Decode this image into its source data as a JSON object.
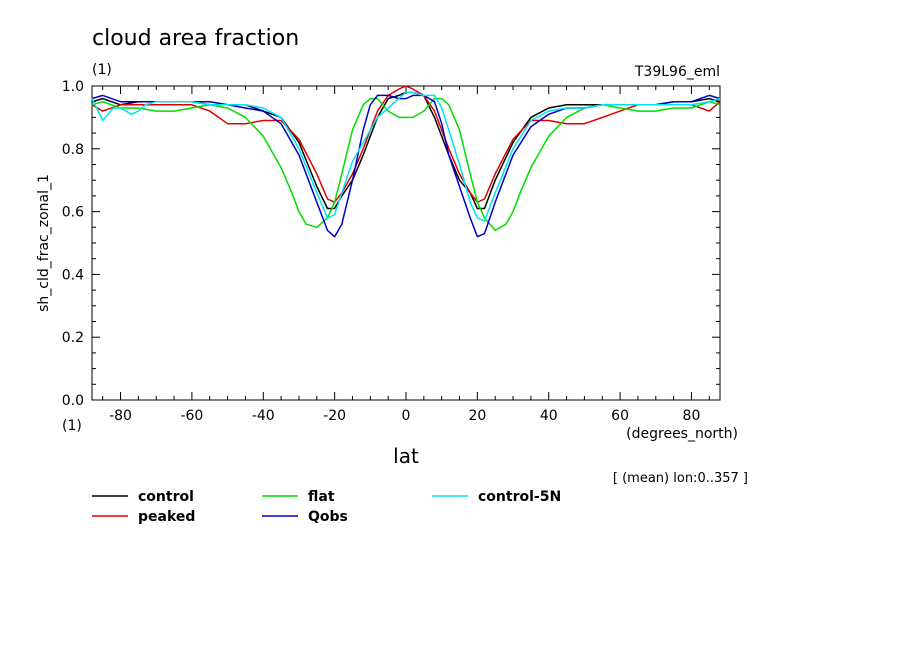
{
  "chart_data": {
    "type": "line",
    "title": "cloud area fraction",
    "y_units_label": "(1)",
    "run_label": "T39L96_eml",
    "ylabel": "sh_cld_frac_zonal_1",
    "xlabel": "lat",
    "x_units_label": "(degrees_north)",
    "x_axis_units_label": "(1)",
    "annotation": "[ (mean) lon:0..357 ]",
    "xlim": [
      -88,
      88
    ],
    "ylim": [
      0.0,
      1.0
    ],
    "x_ticks": [
      -80,
      -60,
      -40,
      -20,
      0,
      20,
      40,
      60,
      80
    ],
    "y_ticks": [
      0.0,
      0.2,
      0.4,
      0.6,
      0.8,
      1.0
    ],
    "x_tick_labels": [
      "-80",
      "-60",
      "-40",
      "-20",
      "0",
      "20",
      "40",
      "60",
      "80"
    ],
    "y_tick_labels": [
      "0.0",
      "0.2",
      "0.4",
      "0.6",
      "0.8",
      "1.0"
    ],
    "grid": false,
    "legend_position": "bottom",
    "series": [
      {
        "name": "control",
        "color": "#000000",
        "x": [
          -88,
          -85,
          -80,
          -75,
          -70,
          -65,
          -60,
          -55,
          -50,
          -45,
          -40,
          -35,
          -30,
          -25,
          -22,
          -20,
          -18,
          -15,
          -12,
          -10,
          -8,
          -5,
          -2,
          0,
          2,
          5,
          8,
          10,
          12,
          15,
          18,
          20,
          22,
          25,
          30,
          35,
          40,
          45,
          50,
          55,
          60,
          65,
          70,
          75,
          80,
          85,
          88
        ],
        "y": [
          0.95,
          0.96,
          0.94,
          0.95,
          0.95,
          0.95,
          0.95,
          0.94,
          0.94,
          0.94,
          0.92,
          0.9,
          0.82,
          0.68,
          0.61,
          0.61,
          0.65,
          0.7,
          0.78,
          0.84,
          0.9,
          0.96,
          0.97,
          0.98,
          0.98,
          0.97,
          0.9,
          0.84,
          0.78,
          0.7,
          0.66,
          0.61,
          0.61,
          0.7,
          0.82,
          0.9,
          0.93,
          0.94,
          0.94,
          0.94,
          0.94,
          0.94,
          0.94,
          0.95,
          0.95,
          0.96,
          0.95
        ]
      },
      {
        "name": "peaked",
        "color": "#e00000",
        "x": [
          -88,
          -85,
          -80,
          -75,
          -70,
          -65,
          -60,
          -55,
          -50,
          -45,
          -40,
          -35,
          -30,
          -25,
          -22,
          -20,
          -18,
          -15,
          -12,
          -10,
          -8,
          -5,
          -2,
          0,
          2,
          5,
          8,
          10,
          12,
          15,
          18,
          20,
          22,
          25,
          30,
          35,
          40,
          45,
          50,
          55,
          60,
          65,
          70,
          75,
          80,
          85,
          88
        ],
        "y": [
          0.94,
          0.92,
          0.94,
          0.94,
          0.94,
          0.94,
          0.94,
          0.92,
          0.88,
          0.88,
          0.89,
          0.89,
          0.83,
          0.72,
          0.64,
          0.63,
          0.66,
          0.72,
          0.8,
          0.86,
          0.92,
          0.97,
          0.99,
          1.0,
          0.99,
          0.97,
          0.92,
          0.86,
          0.8,
          0.72,
          0.66,
          0.63,
          0.64,
          0.72,
          0.83,
          0.89,
          0.89,
          0.88,
          0.88,
          0.9,
          0.92,
          0.94,
          0.94,
          0.94,
          0.94,
          0.92,
          0.95
        ]
      },
      {
        "name": "flat",
        "color": "#00dd00",
        "x": [
          -88,
          -85,
          -80,
          -75,
          -70,
          -65,
          -60,
          -55,
          -50,
          -45,
          -40,
          -35,
          -32,
          -30,
          -28,
          -25,
          -22,
          -20,
          -18,
          -15,
          -12,
          -10,
          -8,
          -5,
          -2,
          0,
          2,
          5,
          8,
          10,
          12,
          15,
          18,
          20,
          22,
          25,
          28,
          30,
          32,
          35,
          40,
          45,
          50,
          55,
          60,
          65,
          70,
          75,
          80,
          85,
          88
        ],
        "y": [
          0.94,
          0.95,
          0.93,
          0.93,
          0.92,
          0.92,
          0.93,
          0.94,
          0.93,
          0.9,
          0.84,
          0.74,
          0.66,
          0.6,
          0.56,
          0.55,
          0.58,
          0.63,
          0.72,
          0.86,
          0.94,
          0.96,
          0.96,
          0.92,
          0.9,
          0.9,
          0.9,
          0.92,
          0.96,
          0.96,
          0.94,
          0.86,
          0.72,
          0.63,
          0.58,
          0.54,
          0.56,
          0.6,
          0.66,
          0.74,
          0.84,
          0.9,
          0.93,
          0.94,
          0.93,
          0.92,
          0.92,
          0.93,
          0.93,
          0.95,
          0.94
        ]
      },
      {
        "name": "Qobs",
        "color": "#0000cc",
        "x": [
          -88,
          -85,
          -80,
          -75,
          -70,
          -65,
          -60,
          -55,
          -50,
          -45,
          -40,
          -35,
          -30,
          -25,
          -22,
          -20,
          -18,
          -15,
          -12,
          -10,
          -8,
          -5,
          -2,
          0,
          2,
          5,
          8,
          10,
          12,
          15,
          18,
          20,
          22,
          25,
          30,
          35,
          40,
          45,
          50,
          55,
          60,
          65,
          70,
          75,
          80,
          85,
          88
        ],
        "y": [
          0.96,
          0.97,
          0.95,
          0.95,
          0.95,
          0.95,
          0.95,
          0.95,
          0.94,
          0.93,
          0.92,
          0.88,
          0.78,
          0.63,
          0.54,
          0.52,
          0.56,
          0.7,
          0.86,
          0.94,
          0.97,
          0.97,
          0.96,
          0.96,
          0.97,
          0.97,
          0.95,
          0.88,
          0.78,
          0.68,
          0.58,
          0.52,
          0.53,
          0.63,
          0.78,
          0.87,
          0.91,
          0.93,
          0.93,
          0.94,
          0.94,
          0.94,
          0.94,
          0.95,
          0.95,
          0.97,
          0.96
        ]
      },
      {
        "name": "control-5N",
        "color": "#00e5ee",
        "x": [
          -88,
          -85,
          -82,
          -80,
          -77,
          -75,
          -73,
          -70,
          -65,
          -60,
          -55,
          -50,
          -45,
          -40,
          -35,
          -30,
          -25,
          -22,
          -20,
          -18,
          -15,
          -12,
          -10,
          -8,
          -5,
          -2,
          0,
          2,
          5,
          8,
          10,
          12,
          15,
          18,
          20,
          22,
          25,
          30,
          35,
          40,
          45,
          50,
          55,
          60,
          65,
          70,
          75,
          80,
          85,
          88
        ],
        "y": [
          0.96,
          0.89,
          0.93,
          0.93,
          0.91,
          0.92,
          0.94,
          0.95,
          0.95,
          0.95,
          0.94,
          0.94,
          0.94,
          0.93,
          0.9,
          0.8,
          0.66,
          0.58,
          0.59,
          0.66,
          0.76,
          0.82,
          0.86,
          0.9,
          0.93,
          0.96,
          0.98,
          0.98,
          0.97,
          0.97,
          0.93,
          0.86,
          0.75,
          0.63,
          0.58,
          0.57,
          0.66,
          0.8,
          0.89,
          0.92,
          0.93,
          0.93,
          0.94,
          0.94,
          0.94,
          0.94,
          0.94,
          0.94,
          0.95,
          0.96
        ]
      }
    ]
  }
}
